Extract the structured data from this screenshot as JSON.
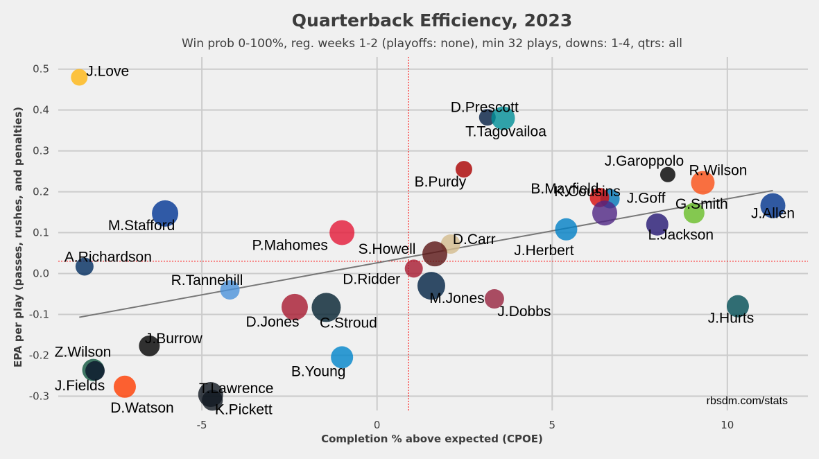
{
  "chart_data": {
    "type": "scatter",
    "title": "Quarterback Efficiency, 2023",
    "subtitle": "Win prob 0-100%, reg. weeks 1-2 (playoffs: none), min 32 plays, downs: 1-4, qtrs: all",
    "xlabel": "Completion % above expected (CPOE)",
    "ylabel": "EPA per play (passes, rushes, and penalties)",
    "credit": "rbsdm.com/stats",
    "xlim": [
      -9.1,
      12.3
    ],
    "ylim": [
      -0.335,
      0.53
    ],
    "xticks": [
      -5,
      0,
      5,
      10
    ],
    "yticks": [
      -0.3,
      -0.2,
      -0.1,
      0.0,
      0.1,
      0.2,
      0.3,
      0.4,
      0.5
    ],
    "xtick_labels": [
      "-5",
      "0",
      "5",
      "10"
    ],
    "ytick_labels": [
      "-0.3",
      "-0.2",
      "-0.1",
      "0.0",
      "0.1",
      "0.2",
      "0.3",
      "0.4",
      "0.5"
    ],
    "grid": true,
    "reference_lines": {
      "x_mean": 0.9,
      "y_mean": 0.03,
      "color": "#ff0000"
    },
    "trend_line": {
      "x": [
        -8.5,
        11.3
      ],
      "y": [
        -0.107,
        0.203
      ],
      "color": "#777777"
    },
    "points": [
      {
        "name": "J.Love",
        "x": -8.5,
        "y": 0.48,
        "size": 12,
        "color": "#FFB612"
      },
      {
        "name": "D.Prescott",
        "x": 3.15,
        "y": 0.382,
        "size": 12,
        "color": "#041E42"
      },
      {
        "name": "T.Tagovailoa",
        "x": 3.6,
        "y": 0.38,
        "size": 17,
        "color": "#008E97"
      },
      {
        "name": "B.Purdy",
        "x": 2.48,
        "y": 0.255,
        "size": 12,
        "color": "#AA0000"
      },
      {
        "name": "J.Garoppolo",
        "x": 8.3,
        "y": 0.242,
        "size": 11,
        "color": "#000000"
      },
      {
        "name": "R.Wilson",
        "x": 9.3,
        "y": 0.222,
        "size": 17,
        "color": "#FB4F14"
      },
      {
        "name": "J.Goff",
        "x": 6.65,
        "y": 0.183,
        "size": 14,
        "color": "#0076B6"
      },
      {
        "name": "B.Mayfield",
        "x": 6.35,
        "y": 0.186,
        "size": 14,
        "color": "#D50A0A"
      },
      {
        "name": "G.Smith",
        "x": 9.05,
        "y": 0.148,
        "size": 15,
        "color": "#69BE28"
      },
      {
        "name": "J.Allen",
        "x": 11.3,
        "y": 0.166,
        "size": 18,
        "color": "#00338D"
      },
      {
        "name": "K.Cousins",
        "x": 6.5,
        "y": 0.148,
        "size": 18,
        "color": "#4F2683"
      },
      {
        "name": "L.Jackson",
        "x": 8.0,
        "y": 0.12,
        "size": 16,
        "color": "#241773"
      },
      {
        "name": "J.Herbert",
        "x": 5.4,
        "y": 0.108,
        "size": 16,
        "color": "#0080C6"
      },
      {
        "name": "M.Stafford",
        "x": -6.05,
        "y": 0.147,
        "size": 19,
        "color": "#003594"
      },
      {
        "name": "P.Mahomes",
        "x": -1.0,
        "y": 0.1,
        "size": 18,
        "color": "#E31837"
      },
      {
        "name": "D.Carr",
        "x": 2.1,
        "y": 0.072,
        "size": 14,
        "color": "#D3BC8D"
      },
      {
        "name": "S.Howell",
        "x": 1.65,
        "y": 0.048,
        "size": 18,
        "color": "#5A1414"
      },
      {
        "name": "A.Richardson",
        "x": -8.35,
        "y": 0.017,
        "size": 13,
        "color": "#002C5F"
      },
      {
        "name": "D.Ridder",
        "x": 1.05,
        "y": 0.012,
        "size": 13,
        "color": "#A71930"
      },
      {
        "name": "M.Jones",
        "x": 1.55,
        "y": -0.03,
        "size": 20,
        "color": "#002244"
      },
      {
        "name": "R.Tannehill",
        "x": -4.2,
        "y": -0.04,
        "size": 14,
        "color": "#4B92DB"
      },
      {
        "name": "J.Dobbs",
        "x": 3.35,
        "y": -0.062,
        "size": 14,
        "color": "#97233F"
      },
      {
        "name": "D.Jones",
        "x": -2.35,
        "y": -0.082,
        "size": 19,
        "color": "#A71930"
      },
      {
        "name": "C.Stroud",
        "x": -1.45,
        "y": -0.083,
        "size": 21,
        "color": "#03202F"
      },
      {
        "name": "J.Hurts",
        "x": 10.3,
        "y": -0.08,
        "size": 16,
        "color": "#004C54"
      },
      {
        "name": "J.Burrow",
        "x": -6.5,
        "y": -0.177,
        "size": 15,
        "color": "#000000"
      },
      {
        "name": "B.Young",
        "x": -1.0,
        "y": -0.205,
        "size": 16,
        "color": "#0085CA"
      },
      {
        "name": "Z.Wilson",
        "x": -8.1,
        "y": -0.236,
        "size": 16,
        "color": "#125740"
      },
      {
        "name": "J.Fields",
        "x": -8.05,
        "y": -0.238,
        "size": 14,
        "color": "#0B162A"
      },
      {
        "name": "D.Watson",
        "x": -7.2,
        "y": -0.277,
        "size": 16,
        "color": "#FF3C00"
      },
      {
        "name": "T.Lawrence",
        "x": -4.75,
        "y": -0.296,
        "size": 18,
        "color": "#101820"
      },
      {
        "name": "K.Pickett",
        "x": -4.7,
        "y": -0.31,
        "size": 15,
        "color": "#101820"
      }
    ]
  }
}
